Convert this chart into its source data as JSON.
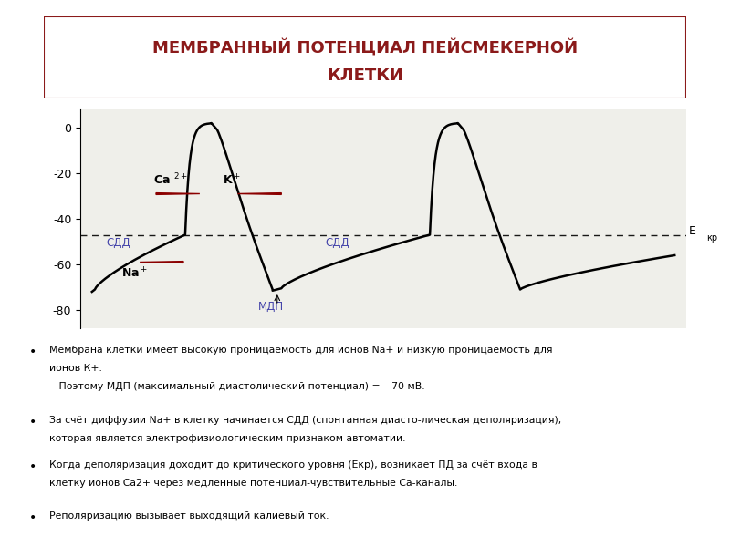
{
  "title_line1": "МЕМБРАННЫЙ ПОТЕНЦИАЛ ПЕЙСМЕКЕРНОЙ",
  "title_line2": "КЛЕТКИ",
  "title_color": "#8B1A1A",
  "background_color": "#FFFFFF",
  "plot_bg_color": "#EFEFEA",
  "ylim": [
    -88,
    8
  ],
  "yticks": [
    0,
    -20,
    -40,
    -60,
    -80
  ],
  "dashed_line_y": -47,
  "sdd_color": "#4444AA",
  "na_color": "#000000",
  "arrow_color": "#8B0000"
}
